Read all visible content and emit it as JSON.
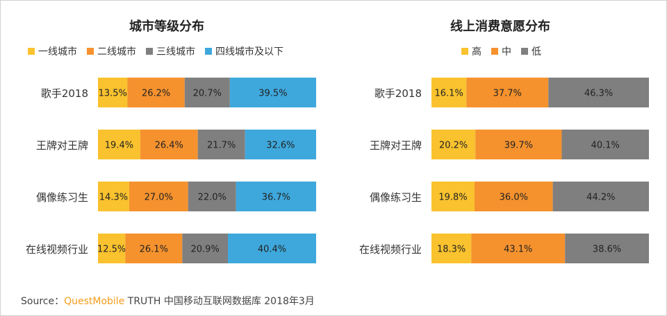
{
  "chart_data": [
    {
      "type": "bar",
      "stacked": true,
      "orientation": "horizontal",
      "title": "城市等级分布",
      "categories": [
        "歌手2018",
        "王牌对王牌",
        "偶像练习生",
        "在线视频行业"
      ],
      "series": [
        {
          "name": "一线城市",
          "color": "#f9c22e",
          "values": [
            13.5,
            19.4,
            14.3,
            12.5
          ],
          "labels": [
            "13.5%",
            "19.4%",
            "14.3%",
            "12.5%"
          ]
        },
        {
          "name": "二线城市",
          "color": "#f5922e",
          "values": [
            26.2,
            26.4,
            27.0,
            26.1
          ],
          "labels": [
            "26.2%",
            "26.4%",
            "27.0%",
            "26.1%"
          ]
        },
        {
          "name": "三线城市",
          "color": "#7f7f7f",
          "values": [
            20.7,
            21.7,
            22.0,
            20.9
          ],
          "labels": [
            "20.7%",
            "21.7%",
            "22.0%",
            "20.9%"
          ]
        },
        {
          "name": "四线城市及以下",
          "color": "#3ea8dc",
          "values": [
            39.5,
            32.6,
            36.7,
            40.4
          ],
          "labels": [
            "39.5%",
            "32.6%",
            "36.7%",
            "40.4%"
          ]
        }
      ],
      "xlim": [
        0,
        100
      ],
      "legend_position": "top",
      "grid": false
    },
    {
      "type": "bar",
      "stacked": true,
      "orientation": "horizontal",
      "title": "线上消费意愿分布",
      "categories": [
        "歌手2018",
        "王牌对王牌",
        "偶像练习生",
        "在线视频行业"
      ],
      "series": [
        {
          "name": "高",
          "color": "#f9c22e",
          "values": [
            16.1,
            20.2,
            19.8,
            18.3
          ],
          "labels": [
            "16.1%",
            "20.2%",
            "19.8%",
            "18.3%"
          ]
        },
        {
          "name": "中",
          "color": "#f5922e",
          "values": [
            37.7,
            39.7,
            36.0,
            43.1
          ],
          "labels": [
            "37.7%",
            "39.7%",
            "36.0%",
            "43.1%"
          ]
        },
        {
          "name": "低",
          "color": "#7f7f7f",
          "values": [
            46.3,
            40.1,
            44.2,
            38.6
          ],
          "labels": [
            "46.3%",
            "40.1%",
            "44.2%",
            "38.6%"
          ]
        }
      ],
      "xlim": [
        0,
        100
      ],
      "legend_position": "top",
      "grid": false
    }
  ],
  "footer": {
    "source_prefix": "Source：",
    "brand": "QuestMobile",
    "source_rest": " TRUTH 中国移动互联网数据库 2018年3月"
  }
}
